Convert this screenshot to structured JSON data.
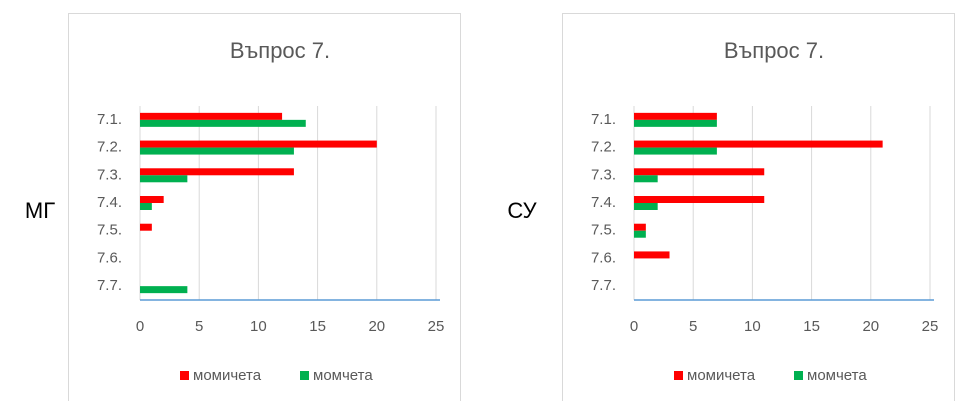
{
  "row_labels": [
    "МГ",
    "СУ"
  ],
  "chart_data": [
    {
      "type": "hbar",
      "title": "Въпрос 7.",
      "categories": [
        "7.1.",
        "7.2.",
        "7.3.",
        "7.4.",
        "7.5.",
        "7.6.",
        "7.7."
      ],
      "series": [
        {
          "name": "момичета",
          "color": "#ff0000",
          "values": [
            12,
            20,
            13,
            2,
            1,
            0,
            0
          ]
        },
        {
          "name": "момчета",
          "color": "#00b050",
          "values": [
            14,
            13,
            4,
            1,
            0,
            0,
            4
          ]
        }
      ],
      "xlim": [
        0,
        25
      ],
      "xticks": [
        0,
        5,
        10,
        15,
        20,
        25
      ],
      "grid": true,
      "legend": "bottom"
    },
    {
      "type": "hbar",
      "title": "Въпрос 7.",
      "categories": [
        "7.1.",
        "7.2.",
        "7.3.",
        "7.4.",
        "7.5.",
        "7.6.",
        "7.7."
      ],
      "series": [
        {
          "name": "момичета",
          "color": "#ff0000",
          "values": [
            7,
            21,
            11,
            11,
            1,
            3,
            0
          ]
        },
        {
          "name": "момчета",
          "color": "#00b050",
          "values": [
            7,
            7,
            2,
            2,
            1,
            0,
            0
          ]
        }
      ],
      "xlim": [
        0,
        25
      ],
      "xticks": [
        0,
        5,
        10,
        15,
        20,
        25
      ],
      "grid": true,
      "legend": "bottom"
    }
  ]
}
